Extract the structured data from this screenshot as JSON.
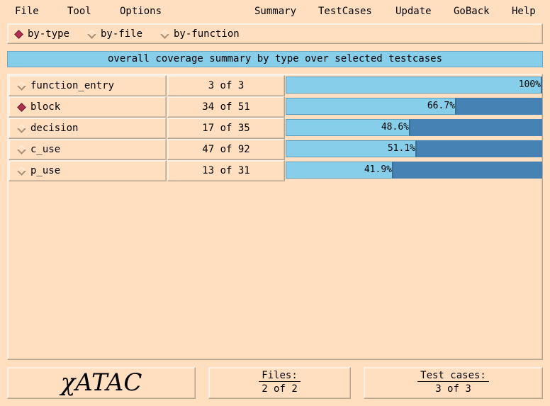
{
  "menu": {
    "left": [
      "File",
      "Tool",
      "Options"
    ],
    "right": [
      "Summary",
      "TestCases",
      "Update",
      "GoBack",
      "Help"
    ]
  },
  "modes": {
    "selected": "by-type",
    "options": [
      "by-type",
      "by-file",
      "by-function"
    ]
  },
  "summary_title": "overall coverage summary by type over selected testcases",
  "rows": [
    {
      "name": "function_entry",
      "count": "3 of 3",
      "percent": 100,
      "percent_label": "100%",
      "selected": false
    },
    {
      "name": "block",
      "count": "34 of 51",
      "percent": 66.7,
      "percent_label": "66.7%",
      "selected": true
    },
    {
      "name": "decision",
      "count": "17 of 35",
      "percent": 48.6,
      "percent_label": "48.6%",
      "selected": false
    },
    {
      "name": "c_use",
      "count": "47 of 92",
      "percent": 51.1,
      "percent_label": "51.1%",
      "selected": false
    },
    {
      "name": "p_use",
      "count": "13 of 31",
      "percent": 41.9,
      "percent_label": "41.9%",
      "selected": false
    }
  ],
  "footer": {
    "logo": "χATAC",
    "files_label": "Files:",
    "files_value": "2 of 2",
    "testcases_label": "Test cases:",
    "testcases_value": "3 of 3"
  },
  "colors": {
    "background": "#ffdfbf",
    "bar_fill": "#87ceeb",
    "bar_track": "#4682b4",
    "selected_indicator": "#b03050"
  }
}
